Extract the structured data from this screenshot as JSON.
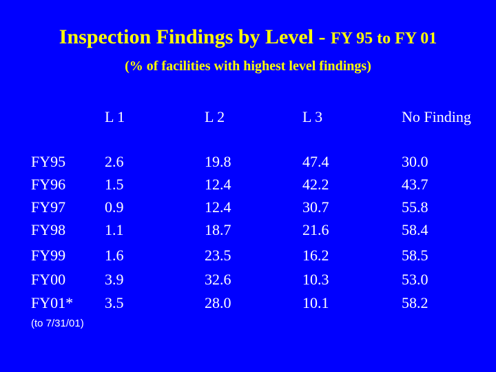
{
  "title_main": "Inspection Findings by Level - ",
  "title_sub": "FY 95 to FY 01",
  "subtitle": "(% of facilities with highest level findings)",
  "headers": [
    "L 1",
    "L 2",
    "L 3",
    "No Finding"
  ],
  "rows": [
    {
      "label": "FY95",
      "values": [
        "2.6",
        "19.8",
        "47.4",
        "30.0"
      ]
    },
    {
      "label": "FY96",
      "values": [
        "1.5",
        "12.4",
        "42.2",
        "43.7"
      ]
    },
    {
      "label": "FY97",
      "values": [
        "0.9",
        "12.4",
        "30.7",
        "55.8"
      ]
    },
    {
      "label": "FY98",
      "values": [
        "1.1",
        "18.7",
        "21.6",
        "58.4"
      ]
    },
    {
      "label": "FY99",
      "values": [
        "1.6",
        "23.5",
        "16.2",
        "58.5"
      ]
    },
    {
      "label": "FY00",
      "values": [
        "3.9",
        "32.6",
        "10.3",
        "53.0"
      ]
    },
    {
      "label": "FY01*",
      "values": [
        "3.5",
        "28.0",
        "10.1",
        "58.2"
      ]
    }
  ],
  "footnote": "(to 7/31/01)",
  "colors": {
    "background": "#0000ff",
    "title": "#ffff00",
    "text": "#ffffff"
  }
}
